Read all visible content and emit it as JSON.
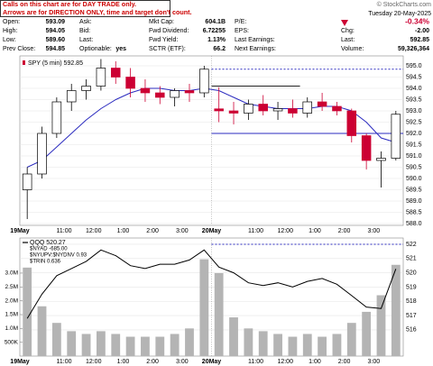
{
  "header": {
    "notice": [
      "Calls on this chart are for DAY TRADE only.",
      "Arrows are for DIRECTION ONLY, time and target don't count."
    ],
    "copyright": "© StockCharts.com",
    "date": "Tuesday 20-May-2025"
  },
  "quote": {
    "rows": [
      [
        "Open:",
        "593.09",
        "Ask:",
        null,
        "Mkt Cap:",
        "604.1B",
        "P/E:",
        null,
        null,
        "-0.34%"
      ],
      [
        "High:",
        "594.05",
        "Bid:",
        null,
        "Fwd Dividend:",
        "6.72255",
        "EPS:",
        null,
        "Chg:",
        "-2.00"
      ],
      [
        "Low:",
        "589.60",
        "Last:",
        null,
        "Fwd Yield:",
        "1.13%",
        "Last Earnings:",
        null,
        "Last:",
        "592.85"
      ],
      [
        "Prev Close:",
        "594.85",
        "Optionable:",
        "yes",
        "SCTR (ETF):",
        "66.2",
        "Next Earnings:",
        null,
        "Volume:",
        "59,326,364"
      ]
    ]
  },
  "chart_data": [
    {
      "type": "candlestick",
      "legend": "SPY (5 min) 592.85",
      "categories": [
        "19May",
        null,
        null,
        "11:00",
        null,
        "12:00",
        null,
        "1:00",
        null,
        "2:00",
        null,
        "3:00",
        null,
        "20May",
        null,
        null,
        "11:00",
        null,
        "12:00",
        null,
        "1:00",
        null,
        "2:00",
        null,
        "3:00",
        null
      ],
      "open": [
        589.5,
        590.2,
        592.0,
        593.4,
        593.9,
        594.1,
        594.9,
        594.5,
        594.0,
        593.8,
        593.6,
        593.9,
        593.8,
        593.09,
        593.0,
        592.9,
        593.3,
        593.0,
        593.1,
        592.9,
        593.4,
        593.2,
        593.0,
        591.9,
        590.8,
        590.9
      ],
      "high": [
        590.5,
        592.3,
        593.6,
        594.2,
        594.4,
        595.3,
        595.2,
        594.9,
        594.4,
        594.1,
        594.0,
        594.2,
        595.0,
        594.05,
        593.4,
        593.5,
        593.7,
        593.4,
        593.5,
        593.6,
        593.8,
        593.4,
        593.1,
        592.0,
        591.2,
        593.0
      ],
      "low": [
        588.2,
        590.0,
        591.8,
        593.0,
        593.5,
        593.9,
        594.2,
        593.6,
        593.4,
        593.3,
        593.2,
        593.4,
        593.6,
        592.5,
        592.4,
        592.6,
        592.8,
        592.6,
        592.7,
        592.7,
        593.0,
        592.8,
        591.6,
        590.4,
        589.6,
        590.8
      ],
      "close": [
        590.2,
        592.0,
        593.4,
        593.9,
        594.1,
        594.9,
        594.5,
        594.0,
        593.8,
        593.6,
        593.9,
        593.8,
        594.85,
        593.0,
        592.9,
        593.3,
        593.0,
        593.1,
        592.9,
        593.4,
        593.2,
        593.0,
        591.9,
        590.8,
        590.9,
        592.85
      ],
      "up_color": "#000000",
      "down_color": "#cc0033",
      "overlays": [
        {
          "color": "#2b2bbf",
          "values": [
            590.5,
            590.8,
            591.4,
            592.0,
            592.6,
            593.1,
            593.5,
            593.8,
            594.0,
            594.0,
            593.9,
            593.9,
            594.0,
            593.9,
            593.6,
            593.3,
            593.2,
            593.1,
            593.1,
            593.1,
            593.2,
            593.2,
            593.0,
            592.5,
            591.8,
            591.6
          ]
        }
      ],
      "levels": [
        {
          "value": 594.85,
          "xrange": [
            13,
            26
          ],
          "color": "#2b2bbf",
          "dashed": true
        },
        {
          "value": 594.1,
          "xrange": [
            13,
            19
          ],
          "color": "#222222",
          "dashed": false
        },
        {
          "value": 592.0,
          "xrange": [
            13,
            26
          ],
          "color": "#2b2bbf",
          "dashed": false
        }
      ],
      "ylim": [
        587.92,
        595.44
      ],
      "yticks": [
        {
          "value": 588,
          "label": "588.0"
        },
        {
          "value": 588.5,
          "label": "588.5"
        },
        {
          "value": 589,
          "label": "589.0"
        },
        {
          "value": 589.5,
          "label": "589.5"
        },
        {
          "value": 590,
          "label": "590.0"
        },
        {
          "value": 590.5,
          "label": "590.5"
        },
        {
          "value": 591,
          "label": "591.0"
        },
        {
          "value": 591.5,
          "label": "591.5"
        },
        {
          "value": 592,
          "label": "592.0"
        },
        {
          "value": 592.5,
          "label": "592.5"
        },
        {
          "value": 593,
          "label": "593.0"
        },
        {
          "value": 593.5,
          "label": "593.5"
        },
        {
          "value": 594,
          "label": "594.0"
        },
        {
          "value": 594.5,
          "label": "594.5"
        },
        {
          "value": 595,
          "label": "595.0"
        }
      ],
      "grid": true
    },
    {
      "type": "line",
      "categories": [
        "19May",
        null,
        null,
        "11:00",
        null,
        "12:00",
        null,
        "1:00",
        null,
        "2:00",
        null,
        "3:00",
        null,
        "20May",
        null,
        null,
        "11:00",
        null,
        "12:00",
        null,
        "1:00",
        null,
        "2:00",
        null,
        "3:00",
        null
      ],
      "series": [
        {
          "name": "QQQ 520.27",
          "color": "#000000",
          "values": [
            516.8,
            518.5,
            519.8,
            520.3,
            520.8,
            521.6,
            521.2,
            520.5,
            520.3,
            520.6,
            520.6,
            520.9,
            521.6,
            520.4,
            520.0,
            519.3,
            519.1,
            519.3,
            519.0,
            519.4,
            519.6,
            519.2,
            518.4,
            517.6,
            517.5,
            520.27
          ]
        },
        {
          "name": "Volume",
          "type": "bar",
          "axis": "y2",
          "color": "#b4b4b4",
          "values": [
            3200000,
            1800000,
            1200000,
            900000,
            800000,
            900000,
            800000,
            700000,
            700000,
            700000,
            800000,
            1000000,
            3500000,
            3000000,
            1400000,
            1000000,
            900000,
            800000,
            700000,
            800000,
            700000,
            800000,
            1200000,
            1600000,
            2200000,
            3300000
          ]
        }
      ],
      "indicator_labels": [
        "$NYAD -685.00",
        "$NYUPV:$NYDNV 0.93",
        "$TRIN 0.636"
      ],
      "levels": [
        {
          "value": 522,
          "xrange": [
            13,
            26
          ],
          "color": "#2b2bbf",
          "dashed": true
        }
      ],
      "ylim": [
        514.16,
        522.44
      ],
      "yticks": [
        516,
        517,
        518,
        519,
        520,
        521,
        522
      ],
      "y2lim": [
        0,
        4270000
      ],
      "y2ticks": [
        {
          "value": 500000,
          "label": "500K"
        },
        {
          "value": 1000000,
          "label": "1.0M"
        },
        {
          "value": 1500000,
          "label": "1.5M"
        },
        {
          "value": 2000000,
          "label": "2.0M"
        },
        {
          "value": 2500000,
          "label": "2.5M"
        },
        {
          "value": 3000000,
          "label": "3.0M"
        }
      ],
      "grid": true
    }
  ]
}
